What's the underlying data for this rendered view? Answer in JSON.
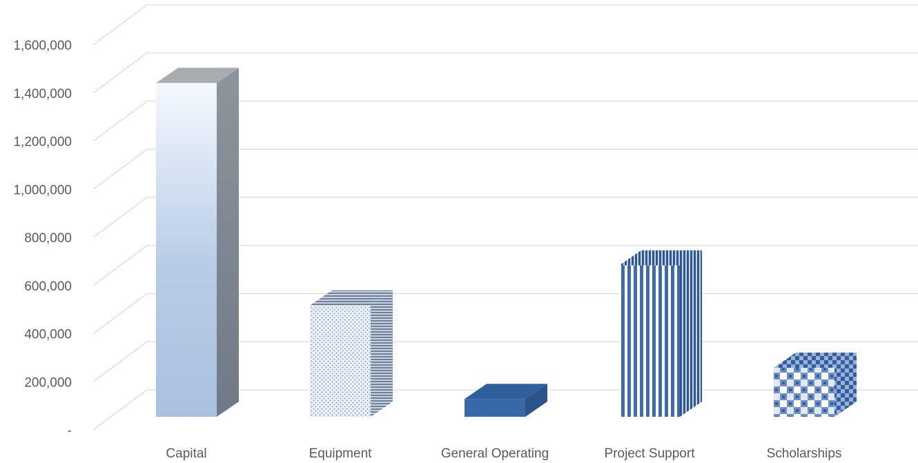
{
  "chart_data": {
    "type": "bar",
    "style": "3d-column",
    "categories": [
      "Capital",
      "Equipment",
      "General Operating",
      "Project Support",
      "Scholarships"
    ],
    "values": [
      1500000,
      500000,
      80000,
      680000,
      220000
    ],
    "ylim": [
      0,
      1600000
    ],
    "yticks": [
      0,
      200000,
      400000,
      600000,
      800000,
      1000000,
      1200000,
      1400000,
      1600000
    ],
    "ytick_labels": [
      "-",
      "200,000",
      "400,000",
      "600,000",
      "800,000",
      "1,000,000",
      "1,200,000",
      "1,400,000",
      "1,600,000"
    ],
    "grid": true,
    "legend": "none",
    "fills": [
      "gradient",
      "dots",
      "solid",
      "vertical-stripes",
      "checker"
    ],
    "colors": {
      "gradient_top": "#f4f8fd",
      "gradient_bottom": "#a9c1e0",
      "side_gray": "#7f8a96",
      "top_gray": "#a8adb2",
      "dot_blue": "#7a98c4",
      "solid_blue": "#3868a8",
      "stripe_blue": "#3d6bab",
      "check_blue": "#2f5fa3",
      "gridline": "#d9d9d9",
      "text": "#595959"
    }
  }
}
